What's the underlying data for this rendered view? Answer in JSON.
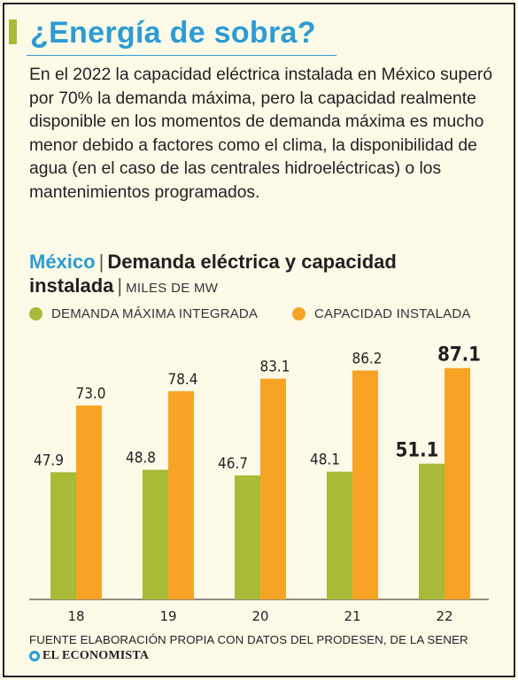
{
  "header": {
    "title": "¿Energía de sobra?",
    "intro": "En el 2022 la capacidad eléctrica instalada en México superó por 70% la demanda máxima, pero la capacidad realmente disponible en los momentos de demanda máxima es mucho menor debido a factores como el clima, la disponibilidad de agua (en el caso de las centrales hidroeléctricas) o los mantenimientos programados."
  },
  "chart_heading": {
    "geo": "México",
    "separator": "|",
    "title": "Demanda eléctrica y capacidad instalada",
    "unit_separator": "|",
    "unit": "MILES DE MW"
  },
  "colors": {
    "accent": "#a9b938",
    "title_blue": "#2d9bd4",
    "demanda": "#a9b938",
    "capacidad": "#f7a426",
    "background": "#fdfbe8"
  },
  "chart_data": {
    "type": "bar",
    "categories": [
      "18",
      "19",
      "20",
      "21",
      "22"
    ],
    "series": [
      {
        "name": "DEMANDA MÁXIMA INTEGRADA",
        "values": [
          47.9,
          48.8,
          46.7,
          48.1,
          51.1
        ],
        "color": "#a9b938"
      },
      {
        "name": "CAPACIDAD INSTALADA",
        "values": [
          73.0,
          78.4,
          83.1,
          86.2,
          87.1
        ],
        "color": "#f7a426"
      }
    ],
    "data_labels": [
      [
        "47.9",
        "48.8",
        "46.7",
        "48.1",
        "51.1"
      ],
      [
        "73.0",
        "78.4",
        "83.1",
        "86.2",
        "87.1"
      ]
    ],
    "highlight_category": "22",
    "ylim": [
      0,
      100
    ],
    "grid": false,
    "legend_position": "top-left"
  },
  "footer": {
    "source": "FUENTE ELABORACIÓN PROPIA CON DATOS DEL PRODESEN, DE LA SENER",
    "brand": "EL ECONOMISTA"
  }
}
